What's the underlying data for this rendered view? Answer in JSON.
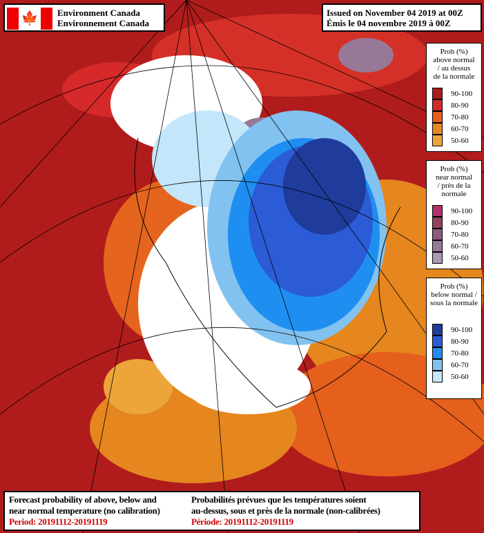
{
  "header": {
    "agency_en": "Environment Canada",
    "agency_fr": "Environnement Canada",
    "issued_en": "Issued on November 04 2019 at 00Z",
    "issued_fr": "Émis le 04 novembre 2019 à 00Z"
  },
  "legends": [
    {
      "title": [
        "Prob (%)",
        "above normal",
        "/ au dessus",
        "de la normale"
      ],
      "items": [
        {
          "label": "90-100",
          "color": "#a81c1c"
        },
        {
          "label": "80-90",
          "color": "#d62a2a"
        },
        {
          "label": "70-80",
          "color": "#e5601c"
        },
        {
          "label": "60-70",
          "color": "#e5861e"
        },
        {
          "label": "50-60",
          "color": "#eda53a"
        }
      ]
    },
    {
      "title": [
        "Prob (%)",
        "near normal",
        "/ près de la",
        "normale"
      ],
      "items": [
        {
          "label": "90-100",
          "color": "#b2306a"
        },
        {
          "label": "80-90",
          "color": "#94405e"
        },
        {
          "label": "70-80",
          "color": "#8e5c7e"
        },
        {
          "label": "60-70",
          "color": "#977896"
        },
        {
          "label": "50-60",
          "color": "#a898b0"
        }
      ]
    },
    {
      "title": [
        "Prob (%)",
        "below normal /",
        "sous la normale"
      ],
      "items": [
        {
          "label": "90-100",
          "color": "#1f3c9c"
        },
        {
          "label": "80-90",
          "color": "#2c5bd6"
        },
        {
          "label": "70-80",
          "color": "#1e8ff0"
        },
        {
          "label": "60-70",
          "color": "#82c2f0"
        },
        {
          "label": "50-60",
          "color": "#c4e6fb"
        }
      ]
    }
  ],
  "footer": {
    "en_line1": "Forecast probability of above, below and",
    "en_line2": "near normal temperature (no calibration)",
    "en_period": "Period: 20191112-20191119",
    "fr_line1": "Probabilités prévues que les températures soient",
    "fr_line2": "au-dessus, sous et près de la normale (non-calibrées)",
    "fr_period": "Période: 20191112-20191119"
  }
}
